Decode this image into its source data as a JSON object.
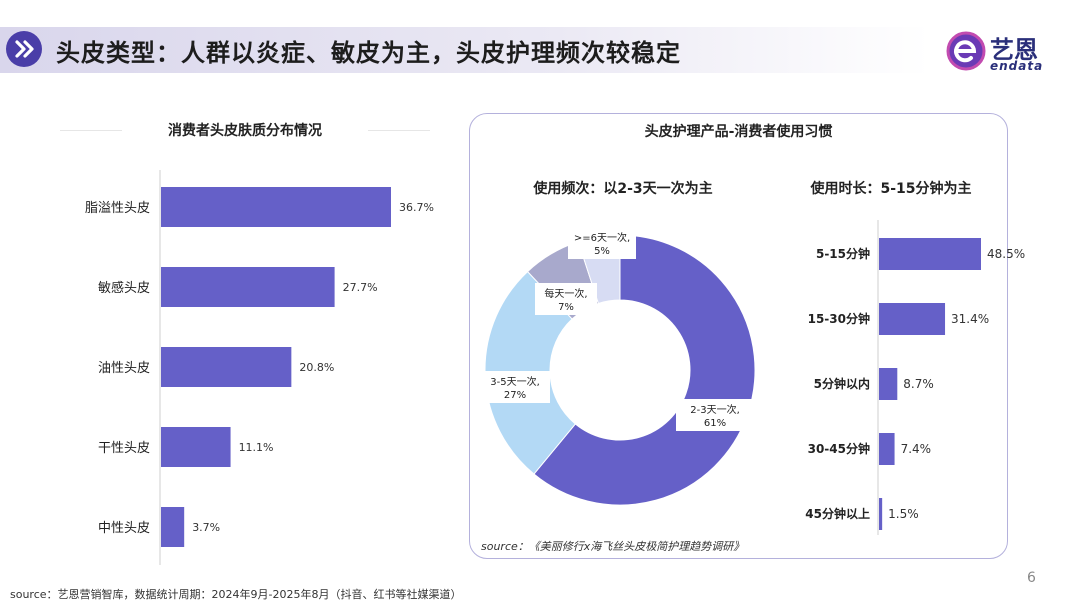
{
  "header": {
    "title": "头皮类型：人群以炎症、敏皮为主，头皮护理频次较稳定",
    "logo_cn": "艺恩",
    "logo_en": "endata"
  },
  "left_chart": {
    "title": "消费者头皮肤质分布情况"
  },
  "right_panel": {
    "title": "头皮护理产品-消费者使用习惯",
    "frequency_title": "使用频次：以2-3天一次为主",
    "duration_title": "使用时长：5-15分钟为主",
    "source": "source：《美丽修行x海飞丝头皮极简护理趋势调研》"
  },
  "footer": {
    "source": "source：艺恩营销智库，数据统计周期：2024年9月-2025年8月（抖音、红书等社媒渠道）",
    "page_number": "6"
  },
  "colors": {
    "bar": "#6560c8",
    "title_icon": "#4a3ea8",
    "donut_main": "#6560c8",
    "donut_light_blue": "#b3d9f5",
    "donut_gray": "#a8a9cc",
    "donut_pale": "#d7dcf3"
  },
  "chart_data": [
    {
      "type": "bar",
      "orientation": "horizontal",
      "title": "消费者头皮肤质分布情况",
      "categories": [
        "脂溢性头皮",
        "敏感头皮",
        "油性头皮",
        "干性头皮",
        "中性头皮"
      ],
      "values": [
        36.7,
        27.7,
        20.8,
        11.1,
        3.7
      ],
      "value_labels": [
        "36.7%",
        "27.7%",
        "20.8%",
        "11.1%",
        "3.7%"
      ],
      "unit": "%",
      "xlim": [
        0,
        40
      ]
    },
    {
      "type": "pie",
      "donut": true,
      "title": "使用频次：以2-3天一次为主",
      "slices": [
        {
          "label": "2-3天一次,",
          "value_label": "61%",
          "value": 61,
          "color": "#6560c8"
        },
        {
          "label": "3-5天一次,",
          "value_label": "27%",
          "value": 27,
          "color": "#b3d9f5"
        },
        {
          "label": "每天一次,",
          "value_label": "7%",
          "value": 7,
          "color": "#a8a9cc"
        },
        {
          "label": ">=6天一次,",
          "value_label": "5%",
          "value": 5,
          "color": "#d7dcf3"
        }
      ]
    },
    {
      "type": "bar",
      "orientation": "horizontal",
      "title": "使用时长：5-15分钟为主",
      "categories": [
        "5-15分钟",
        "15-30分钟",
        "5分钟以内",
        "30-45分钟",
        "45分钟以上"
      ],
      "values": [
        48.5,
        31.4,
        8.7,
        7.4,
        1.5
      ],
      "value_labels": [
        "48.5%",
        "31.4%",
        "8.7%",
        "7.4%",
        "1.5%"
      ],
      "unit": "%",
      "xlim": [
        0,
        50
      ]
    }
  ]
}
